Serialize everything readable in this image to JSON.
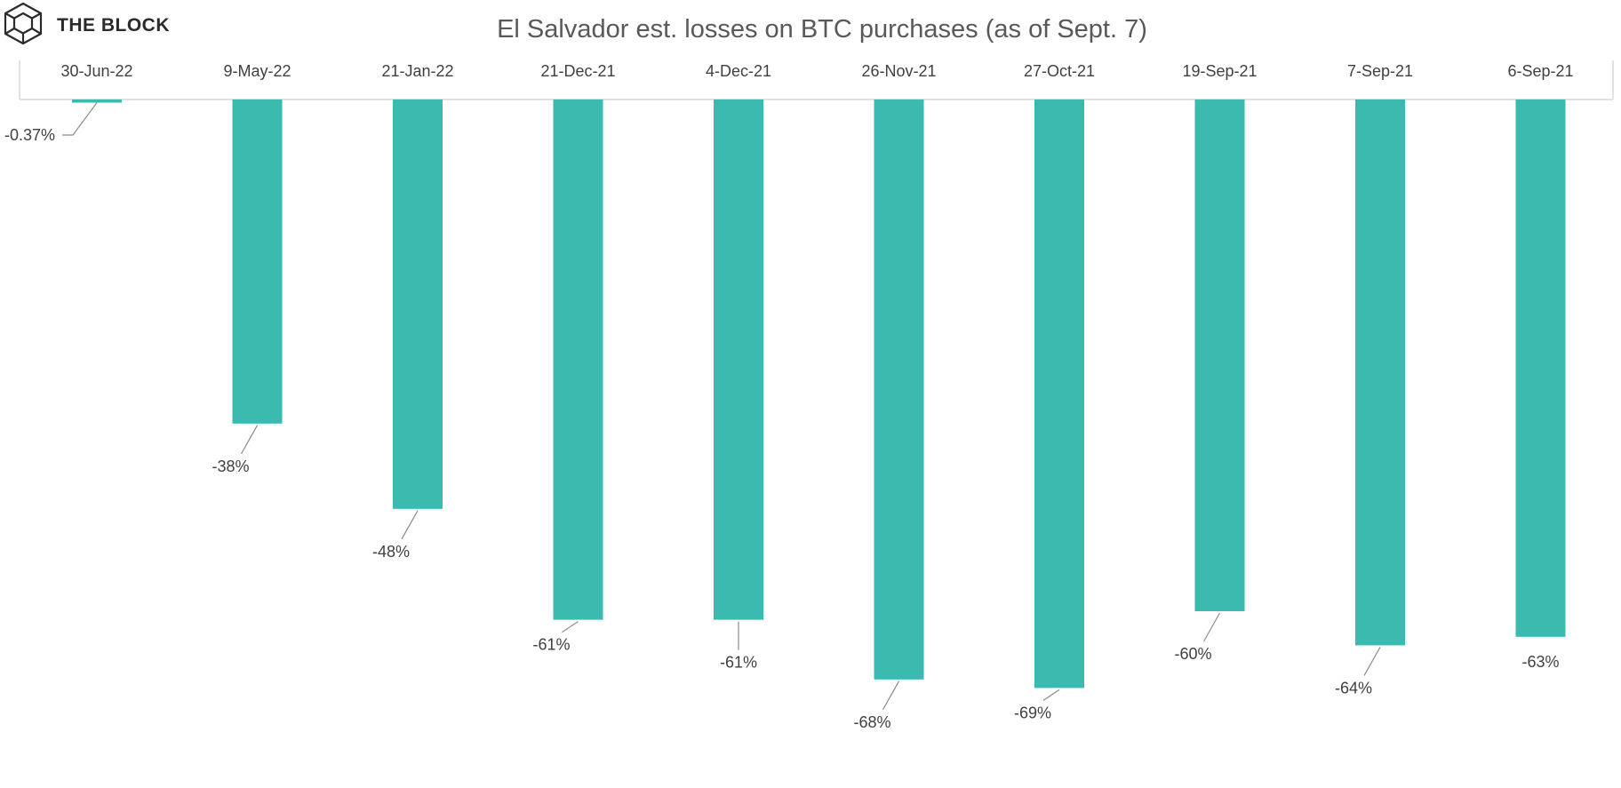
{
  "brand": {
    "name": "THE BLOCK",
    "logo_icon": "cube-logo-icon"
  },
  "chart_data": {
    "type": "bar",
    "title": "El Salvador est. losses on BTC purchases (as of Sept. 7)",
    "xlabel": "",
    "ylabel": "",
    "categories": [
      "30-Jun-22",
      "9-May-22",
      "21-Jan-22",
      "21-Dec-21",
      "4-Dec-21",
      "26-Nov-21",
      "27-Oct-21",
      "19-Sep-21",
      "7-Sep-21",
      "6-Sep-21"
    ],
    "values": [
      -0.37,
      -38,
      -48,
      -61,
      -61,
      -68,
      -69,
      -60,
      -64,
      -63
    ],
    "data_labels": [
      "-0.37%",
      "-38%",
      "-48%",
      "-61%",
      "-61%",
      "-68%",
      "-69%",
      "-60%",
      "-64%",
      "-63%"
    ],
    "ylim": [
      -69,
      0
    ],
    "unit": "%",
    "x_axis_position": "top",
    "grid": false,
    "legend": "none",
    "colors": {
      "bar": "#3bbbb0",
      "axis": "#d9d9d9",
      "text": "#404040",
      "title": "#595959",
      "leader": "#8c8c8c"
    }
  }
}
